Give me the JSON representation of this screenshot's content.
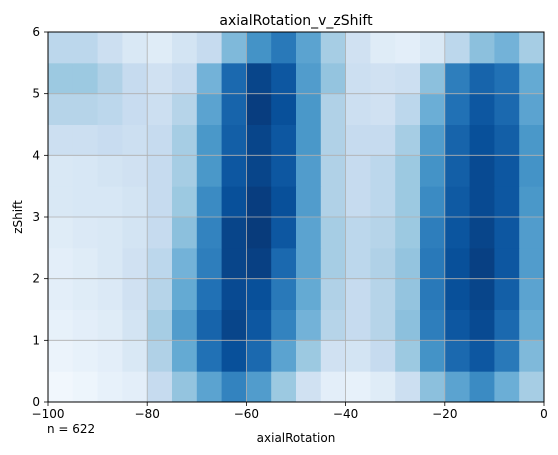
{
  "chart_data": {
    "type": "heatmap",
    "title": "axialRotation_v_zShift",
    "xlabel": "axialRotation",
    "ylabel": "zShift",
    "annotation": "n = 622",
    "xlim": [
      -100,
      0
    ],
    "ylim": [
      0,
      6
    ],
    "xticks": [
      "−100",
      "−80",
      "−60",
      "−40",
      "−20",
      "0"
    ],
    "xtick_values": [
      -100,
      -80,
      -60,
      -40,
      -20,
      0
    ],
    "yticks": [
      "0",
      "1",
      "2",
      "3",
      "4",
      "5",
      "6"
    ],
    "ytick_values": [
      0,
      1,
      2,
      3,
      4,
      5,
      6
    ],
    "grid": true,
    "colormap": "Blues",
    "x_bins": 20,
    "y_bins": 12,
    "intensity_rows_bottom_to_top": [
      [
        0.03,
        0.05,
        0.08,
        0.1,
        0.25,
        0.4,
        0.55,
        0.68,
        0.58,
        0.38,
        0.2,
        0.1,
        0.08,
        0.12,
        0.22,
        0.42,
        0.55,
        0.65,
        0.5,
        0.35
      ],
      [
        0.06,
        0.08,
        0.1,
        0.15,
        0.32,
        0.52,
        0.75,
        0.88,
        0.78,
        0.55,
        0.38,
        0.2,
        0.18,
        0.25,
        0.38,
        0.62,
        0.78,
        0.85,
        0.72,
        0.45
      ],
      [
        0.08,
        0.1,
        0.12,
        0.18,
        0.35,
        0.58,
        0.8,
        0.92,
        0.85,
        0.68,
        0.48,
        0.3,
        0.25,
        0.3,
        0.42,
        0.7,
        0.85,
        0.9,
        0.78,
        0.52
      ],
      [
        0.1,
        0.12,
        0.14,
        0.2,
        0.3,
        0.52,
        0.75,
        0.9,
        0.88,
        0.72,
        0.52,
        0.32,
        0.25,
        0.3,
        0.4,
        0.72,
        0.88,
        0.92,
        0.82,
        0.55
      ],
      [
        0.1,
        0.12,
        0.15,
        0.2,
        0.28,
        0.48,
        0.7,
        0.92,
        0.94,
        0.78,
        0.55,
        0.35,
        0.28,
        0.32,
        0.4,
        0.72,
        0.88,
        0.94,
        0.85,
        0.58
      ],
      [
        0.12,
        0.14,
        0.15,
        0.18,
        0.25,
        0.42,
        0.68,
        0.92,
        0.96,
        0.85,
        0.55,
        0.35,
        0.28,
        0.3,
        0.38,
        0.7,
        0.86,
        0.92,
        0.85,
        0.58
      ],
      [
        0.15,
        0.16,
        0.16,
        0.18,
        0.25,
        0.38,
        0.65,
        0.88,
        0.95,
        0.88,
        0.58,
        0.32,
        0.25,
        0.28,
        0.38,
        0.65,
        0.84,
        0.9,
        0.85,
        0.6
      ],
      [
        0.15,
        0.16,
        0.18,
        0.2,
        0.25,
        0.35,
        0.6,
        0.85,
        0.92,
        0.85,
        0.58,
        0.32,
        0.25,
        0.28,
        0.38,
        0.62,
        0.82,
        0.9,
        0.85,
        0.62
      ],
      [
        0.22,
        0.22,
        0.24,
        0.22,
        0.25,
        0.35,
        0.6,
        0.82,
        0.92,
        0.85,
        0.6,
        0.32,
        0.25,
        0.25,
        0.35,
        0.58,
        0.8,
        0.88,
        0.82,
        0.6
      ],
      [
        0.3,
        0.3,
        0.28,
        0.24,
        0.22,
        0.3,
        0.55,
        0.8,
        0.95,
        0.88,
        0.6,
        0.32,
        0.22,
        0.2,
        0.28,
        0.5,
        0.75,
        0.85,
        0.78,
        0.55
      ],
      [
        0.38,
        0.38,
        0.32,
        0.25,
        0.2,
        0.25,
        0.48,
        0.78,
        0.92,
        0.85,
        0.58,
        0.4,
        0.22,
        0.2,
        0.22,
        0.42,
        0.7,
        0.8,
        0.75,
        0.52
      ],
      [
        0.28,
        0.28,
        0.22,
        0.15,
        0.12,
        0.18,
        0.25,
        0.45,
        0.62,
        0.72,
        0.55,
        0.35,
        0.2,
        0.12,
        0.1,
        0.15,
        0.28,
        0.42,
        0.48,
        0.35
      ]
    ]
  }
}
